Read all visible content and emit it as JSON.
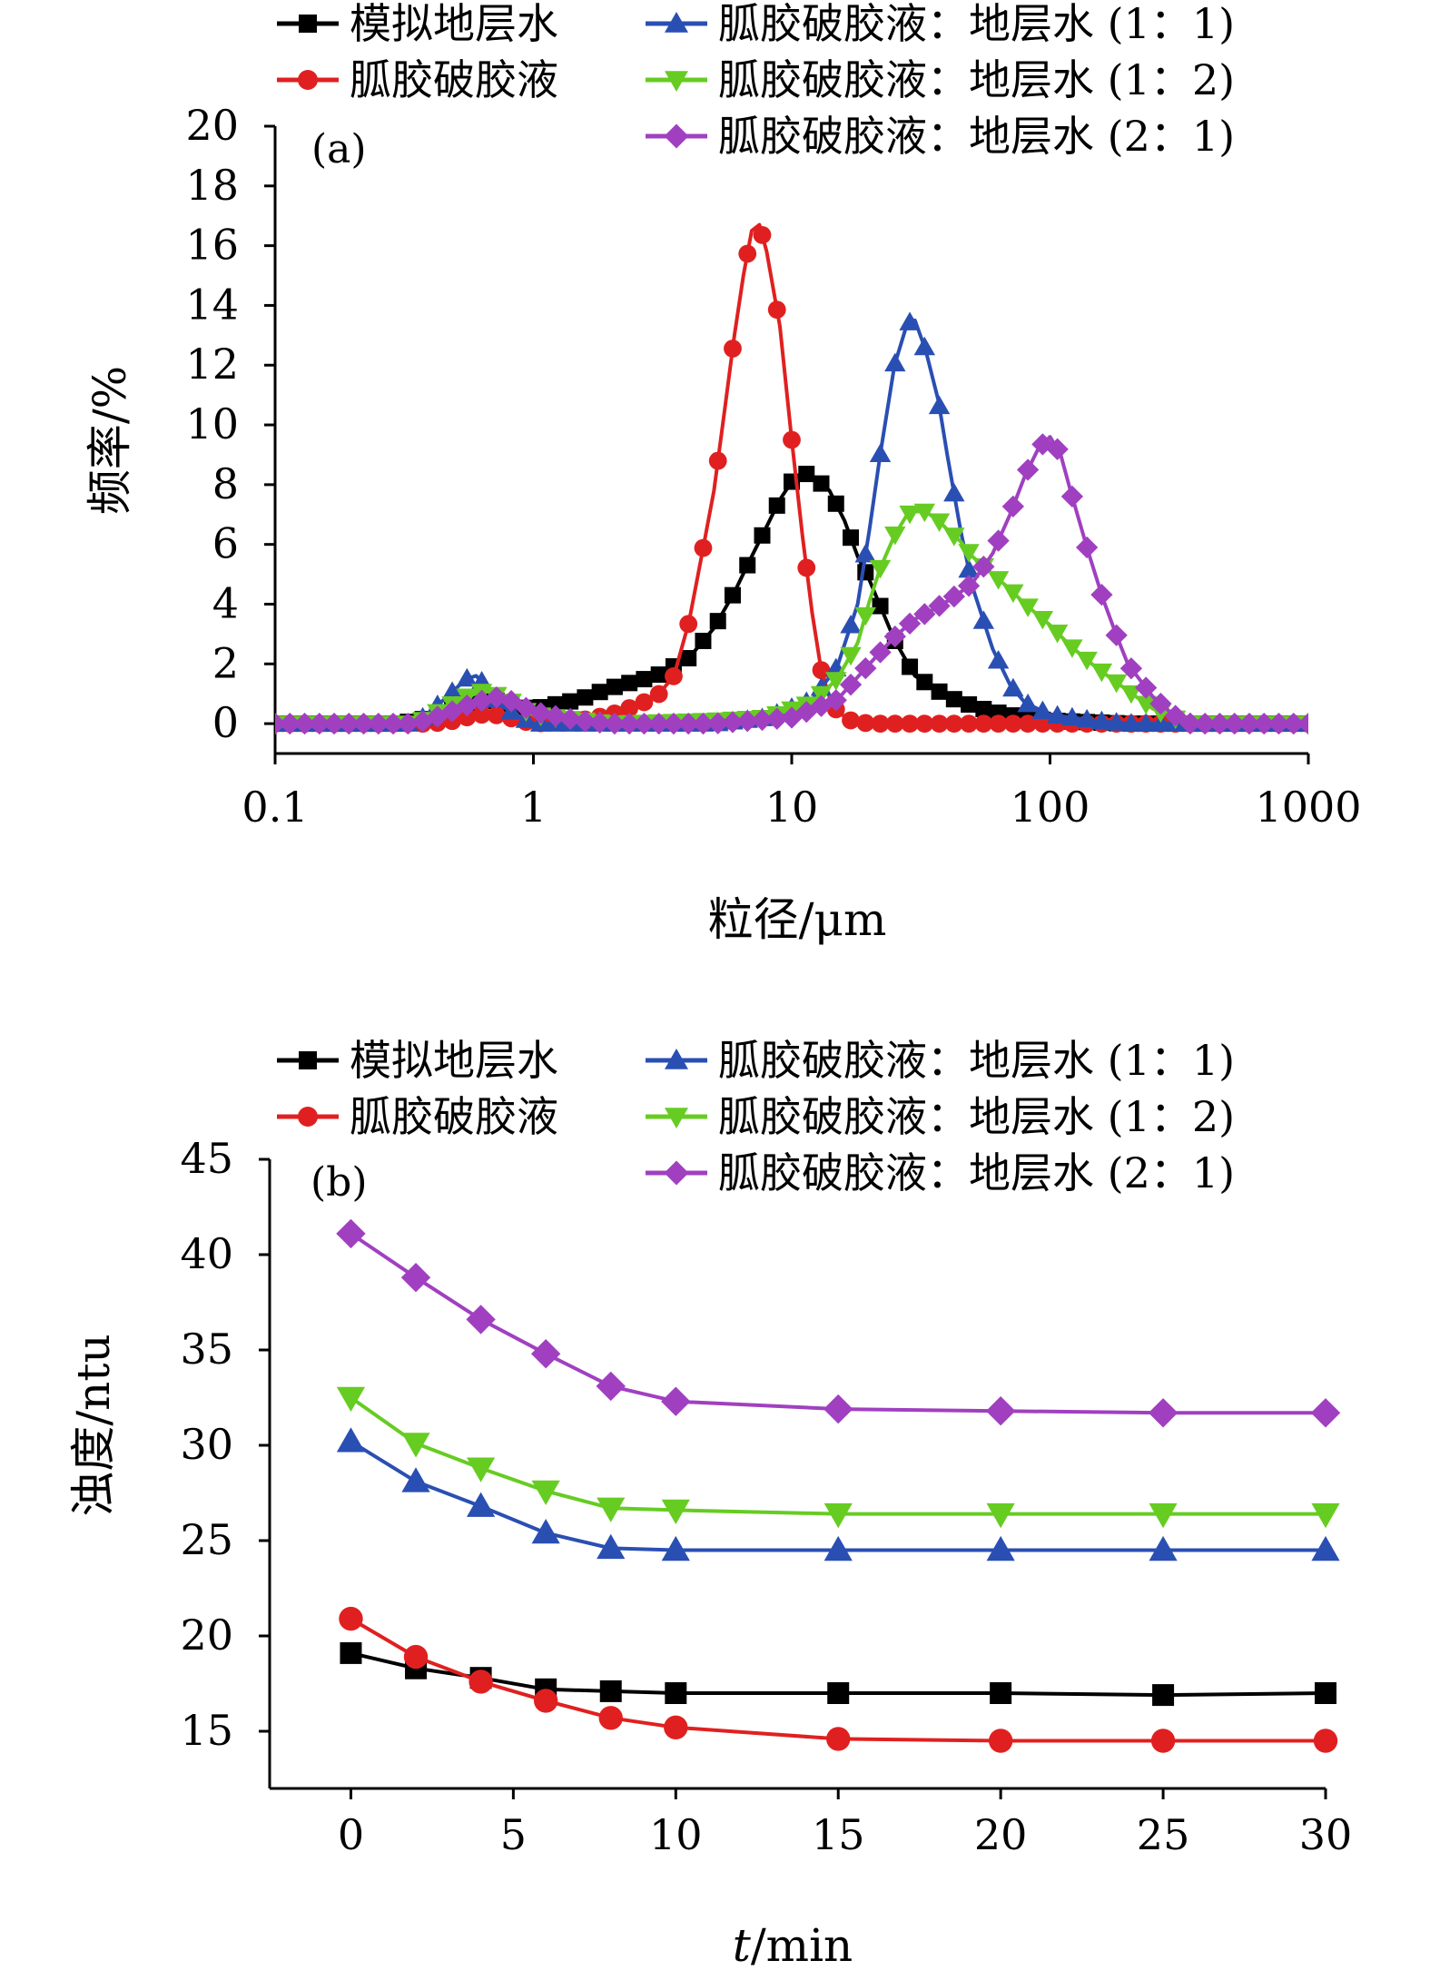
{
  "series_styles": [
    {
      "color": "#000000",
      "marker": "square"
    },
    {
      "color": "#e02020",
      "marker": "circle"
    },
    {
      "color": "#2a4fb3",
      "marker": "triangle-up"
    },
    {
      "color": "#66cc22",
      "marker": "triangle-down"
    },
    {
      "color": "#a040c0",
      "marker": "diamond"
    }
  ],
  "chart_data": [
    {
      "panel_label": "(a)",
      "type": "line",
      "xlabel": "粒径/μm",
      "ylabel": "频率/%",
      "x_scale": "log",
      "xlim": [
        0.1,
        1000
      ],
      "ylim": [
        -1,
        20
      ],
      "xticks": [
        0.1,
        1,
        10,
        100,
        1000
      ],
      "xtick_labels": [
        "0.1",
        "1",
        "10",
        "100",
        "1000"
      ],
      "yticks": [
        0,
        2,
        4,
        6,
        8,
        10,
        12,
        14,
        16,
        18,
        20
      ],
      "ytick_labels": [
        "0",
        "2",
        "4",
        "6",
        "8",
        "10",
        "12",
        "14",
        "16",
        "18",
        "20"
      ],
      "legend": [
        "模拟地层水",
        "胍胶破胶液",
        "胍胶破胶液：地层水 (1：1)",
        "胍胶破胶液：地层水 (1：2)",
        "胍胶破胶液：地层水 (2：1)"
      ],
      "series": [
        {
          "name": "模拟地层水",
          "x": [
            0.1,
            0.3,
            0.4,
            0.5,
            0.6,
            0.7,
            0.8,
            1.0,
            1.5,
            2.0,
            3.0,
            4.0,
            5.0,
            6.0,
            7.0,
            8.0,
            9.0,
            10.0,
            11.0,
            12.0,
            14.0,
            16.0,
            18.0,
            20.0,
            25.0,
            30.0,
            40.0,
            50.0,
            60.0,
            80.0,
            100.0,
            200.0,
            300.0,
            1000.0
          ],
          "y": [
            0,
            0,
            0.2,
            0.5,
            0.8,
            0.8,
            0.6,
            0.5,
            0.8,
            1.2,
            1.6,
            2.2,
            3.2,
            4.4,
            5.6,
            6.6,
            7.5,
            8.1,
            8.4,
            8.3,
            7.8,
            6.8,
            5.6,
            4.8,
            2.8,
            1.6,
            0.9,
            0.6,
            0.4,
            0.2,
            0.1,
            0,
            0,
            0
          ]
        },
        {
          "name": "胍胶破胶液",
          "x": [
            0.1,
            0.4,
            0.5,
            0.6,
            0.7,
            0.8,
            1.0,
            1.5,
            2.0,
            2.5,
            3.0,
            3.5,
            4.0,
            4.5,
            5.0,
            5.5,
            6.0,
            6.5,
            7.0,
            7.5,
            8.0,
            9.0,
            10.0,
            11.0,
            12.0,
            13.0,
            14.0,
            15.0,
            17.0,
            20.0,
            25.0,
            50.0,
            100.0,
            1000.0
          ],
          "y": [
            0,
            0,
            0.1,
            0.3,
            0.3,
            0.2,
            0,
            0.1,
            0.3,
            0.6,
            0.9,
            1.6,
            3.4,
            5.7,
            7.8,
            10.5,
            13.0,
            15.0,
            16.5,
            16.7,
            15.8,
            13.3,
            9.5,
            6.3,
            3.7,
            1.8,
            0.9,
            0.4,
            0.1,
            0,
            0,
            0,
            0,
            0
          ]
        },
        {
          "name": "胍胶破胶液：地层水 (1：1)",
          "x": [
            0.1,
            0.35,
            0.45,
            0.55,
            0.6,
            0.65,
            0.75,
            0.9,
            1.0,
            2.0,
            5.0,
            8.0,
            12.0,
            15.0,
            18.0,
            20.0,
            22.0,
            25.0,
            28.0,
            30.0,
            33.0,
            37.0,
            40.0,
            45.0,
            50.0,
            60.0,
            70.0,
            80.0,
            100.0,
            150.0,
            200.0,
            300.0,
            1000.0
          ],
          "y": [
            0,
            0,
            0.8,
            1.5,
            1.6,
            1.3,
            0.6,
            0.2,
            0,
            0,
            0,
            0.2,
            0.8,
            1.9,
            4.0,
            6.5,
            9.0,
            12.0,
            13.4,
            13.5,
            12.5,
            10.8,
            9.0,
            6.5,
            4.6,
            2.5,
            1.3,
            0.7,
            0.3,
            0.1,
            0,
            0,
            0
          ]
        },
        {
          "name": "胍胶破胶液：地层水 (1：2)",
          "x": [
            0.1,
            0.35,
            0.45,
            0.55,
            0.65,
            0.7,
            0.8,
            0.9,
            1.0,
            2.0,
            5.0,
            8.0,
            12.0,
            15.0,
            18.0,
            20.0,
            22.0,
            25.0,
            28.0,
            30.0,
            33.0,
            37.0,
            40.0,
            45.0,
            50.0,
            60.0,
            70.0,
            80.0,
            100.0,
            120.0,
            150.0,
            200.0,
            250.0,
            300.0,
            350.0,
            1000.0
          ],
          "y": [
            0,
            0,
            0.5,
            0.9,
            1.1,
            1.0,
            0.8,
            0.5,
            0.3,
            0,
            0.1,
            0.2,
            0.7,
            1.5,
            2.7,
            4.1,
            5.2,
            6.3,
            7.0,
            7.1,
            7.1,
            6.8,
            6.5,
            6.1,
            5.6,
            5.0,
            4.5,
            4.0,
            3.3,
            2.6,
            1.9,
            1.1,
            0.5,
            0.2,
            0,
            0
          ]
        },
        {
          "name": "胍胶破胶液：地层水 (2：1)",
          "x": [
            0.1,
            0.35,
            0.45,
            0.55,
            0.65,
            0.7,
            0.8,
            0.9,
            1.0,
            1.5,
            2.0,
            5.0,
            10.0,
            15.0,
            20.0,
            25.0,
            30.0,
            35.0,
            40.0,
            45.0,
            50.0,
            60.0,
            70.0,
            80.0,
            90.0,
            100.0,
            110.0,
            120.0,
            140.0,
            160.0,
            180.0,
            200.0,
            250.0,
            300.0,
            350.0,
            1000.0
          ],
          "y": [
            0,
            0,
            0.3,
            0.6,
            0.8,
            0.9,
            0.8,
            0.6,
            0.4,
            0.1,
            0,
            0,
            0.2,
            0.8,
            2.0,
            2.9,
            3.5,
            3.8,
            4.1,
            4.4,
            4.7,
            5.7,
            7.0,
            8.3,
            9.2,
            9.6,
            9.0,
            7.8,
            5.8,
            4.2,
            3.0,
            2.0,
            0.9,
            0.3,
            0,
            0
          ]
        }
      ]
    },
    {
      "panel_label": "(b)",
      "type": "line",
      "xlabel_italic": "t",
      "xlabel": "/min",
      "ylabel": "浊度/ntu",
      "xlim": [
        -2.5,
        30
      ],
      "ylim": [
        12,
        45
      ],
      "xticks": [
        0,
        5,
        10,
        15,
        20,
        25,
        30
      ],
      "xtick_labels": [
        "0",
        "5",
        "10",
        "15",
        "20",
        "25",
        "30"
      ],
      "yticks": [
        15,
        20,
        25,
        30,
        35,
        40,
        45
      ],
      "ytick_labels": [
        "15",
        "20",
        "25",
        "30",
        "35",
        "40",
        "45"
      ],
      "legend": [
        "模拟地层水",
        "胍胶破胶液",
        "胍胶破胶液：地层水 (1：1)",
        "胍胶破胶液：地层水 (1：2)",
        "胍胶破胶液：地层水 (2：1)"
      ],
      "x": [
        0,
        2,
        4,
        6,
        8,
        10,
        15,
        20,
        25,
        30
      ],
      "series": [
        {
          "name": "模拟地层水",
          "values": [
            19.1,
            18.3,
            17.8,
            17.2,
            17.1,
            17.0,
            17.0,
            17.0,
            16.9,
            17.0
          ]
        },
        {
          "name": "胍胶破胶液",
          "values": [
            20.9,
            18.9,
            17.6,
            16.6,
            15.7,
            15.2,
            14.6,
            14.5,
            14.5,
            14.5
          ]
        },
        {
          "name": "胍胶破胶液：地层水 (1：1)",
          "values": [
            30.2,
            28.1,
            26.8,
            25.4,
            24.6,
            24.5,
            24.5,
            24.5,
            24.5,
            24.5
          ]
        },
        {
          "name": "胍胶破胶液：地层水 (1：2)",
          "values": [
            32.5,
            30.1,
            28.8,
            27.6,
            26.7,
            26.6,
            26.4,
            26.4,
            26.4,
            26.4
          ]
        },
        {
          "name": "胍胶破胶液：地层水 (2：1)",
          "values": [
            41.1,
            38.8,
            36.6,
            34.8,
            33.1,
            32.3,
            31.9,
            31.8,
            31.7,
            31.7
          ]
        }
      ]
    }
  ]
}
